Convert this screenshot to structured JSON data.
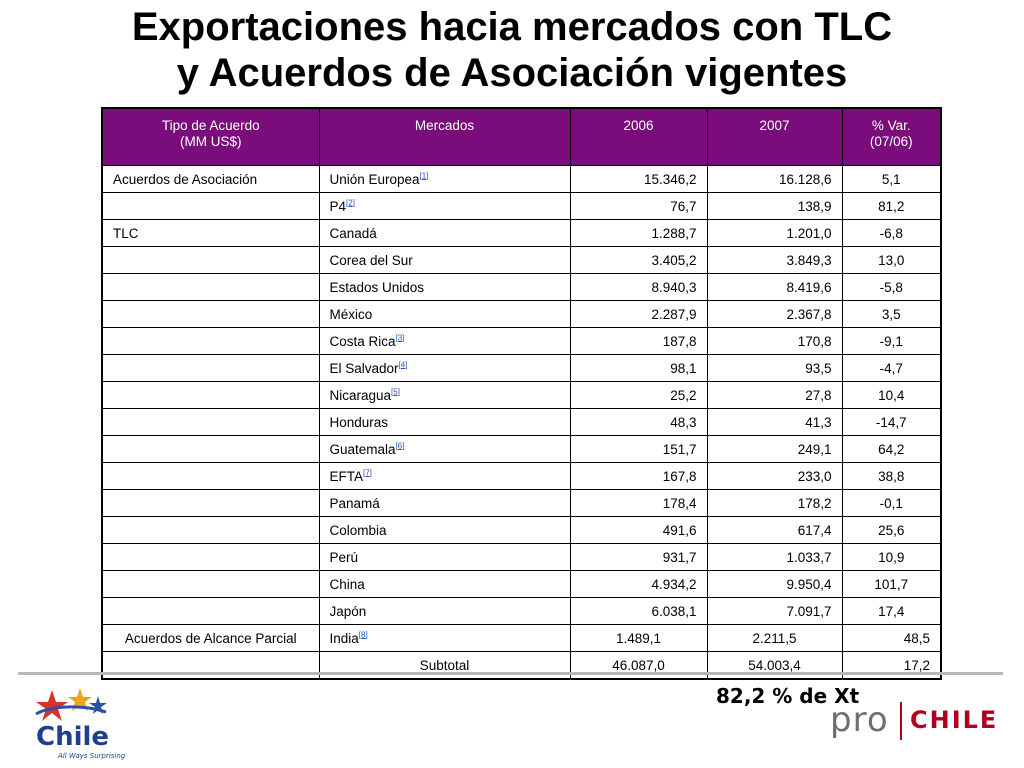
{
  "title": {
    "line1": "Exportaciones hacia mercados con TLC",
    "line2": "y Acuerdos de Asociación vigentes"
  },
  "table": {
    "headers": {
      "tipo_line1": "Tipo de Acuerdo",
      "tipo_line2": "(MM US$)",
      "mercados": "Mercados",
      "y2006": "2006",
      "y2007": "2007",
      "var_line1": "% Var.",
      "var_line2": "(07/06)"
    },
    "rows": [
      {
        "tipo": "Acuerdos de Asociación",
        "mercado": "Unión Europea",
        "fn": "[1]",
        "v2006": "15.346,2",
        "v2007": "16.128,6",
        "var": "5,1"
      },
      {
        "tipo": "",
        "mercado": "P4",
        "fn": "[2]",
        "v2006": "76,7",
        "v2007": "138,9",
        "var": "81,2"
      },
      {
        "tipo": "TLC",
        "mercado": "Canadá",
        "fn": "",
        "v2006": "1.288,7",
        "v2007": "1.201,0",
        "var": "-6,8"
      },
      {
        "tipo": "",
        "mercado": "Corea del Sur",
        "fn": "",
        "v2006": "3.405,2",
        "v2007": "3.849,3",
        "var": "13,0"
      },
      {
        "tipo": "",
        "mercado": "Estados Unidos",
        "fn": "",
        "v2006": "8.940,3",
        "v2007": "8.419,6",
        "var": "-5,8"
      },
      {
        "tipo": "",
        "mercado": "México",
        "fn": "",
        "v2006": "2.287,9",
        "v2007": "2.367,8",
        "var": "3,5"
      },
      {
        "tipo": "",
        "mercado": "Costa Rica",
        "fn": "[3]",
        "v2006": "187,8",
        "v2007": "170,8",
        "var": "-9,1"
      },
      {
        "tipo": "",
        "mercado": "El Salvador",
        "fn": "[4]",
        "v2006": "98,1",
        "v2007": "93,5",
        "var": "-4,7"
      },
      {
        "tipo": "",
        "mercado": "Nicaragua",
        "fn": "[5]",
        "v2006": "25,2",
        "v2007": "27,8",
        "var": "10,4"
      },
      {
        "tipo": "",
        "mercado": "Honduras",
        "fn": "",
        "v2006": "48,3",
        "v2007": "41,3",
        "var": "-14,7"
      },
      {
        "tipo": "",
        "mercado": "Guatemala",
        "fn": "[6]",
        "v2006": "151,7",
        "v2007": "249,1",
        "var": "64,2"
      },
      {
        "tipo": "",
        "mercado": "EFTA",
        "fn": "[7]",
        "v2006": "167,8",
        "v2007": "233,0",
        "var": "38,8"
      },
      {
        "tipo": "",
        "mercado": "Panamá",
        "fn": "",
        "v2006": "178,4",
        "v2007": "178,2",
        "var": "-0,1"
      },
      {
        "tipo": "",
        "mercado": "Colombia",
        "fn": "",
        "v2006": "491,6",
        "v2007": "617,4",
        "var": "25,6"
      },
      {
        "tipo": "",
        "mercado": "Perú",
        "fn": "",
        "v2006": "931,7",
        "v2007": "1.033,7",
        "var": "10,9"
      },
      {
        "tipo": "",
        "mercado": "China",
        "fn": "",
        "v2006": "4.934,2",
        "v2007": "9.950,4",
        "var": "101,7"
      },
      {
        "tipo": "",
        "mercado": "Japón",
        "fn": "",
        "v2006": "6.038,1",
        "v2007": "7.091,7",
        "var": "17,4"
      }
    ],
    "partial": {
      "tipo": "Acuerdos de Alcance Parcial",
      "mercado": "India",
      "fn": "[8]",
      "v2006": "1.489,1",
      "v2007": "2.211,5",
      "var": "48,5"
    },
    "subtotal": {
      "label": "Subtotal",
      "v2006": "46.087,0",
      "v2007": "54.003,4",
      "var": "17,2"
    }
  },
  "share_note": "82,2 % de Xt",
  "logos": {
    "chile_word": "Chile",
    "chile_tagline": "All Ways Surprising",
    "pro_word": "pro",
    "chile_caps": "CHILE"
  },
  "colors": {
    "header_bg": "#7b0c7b",
    "header_text": "#ffffff",
    "footnote_link": "#2b52c7",
    "prochile_red": "#b00020"
  }
}
